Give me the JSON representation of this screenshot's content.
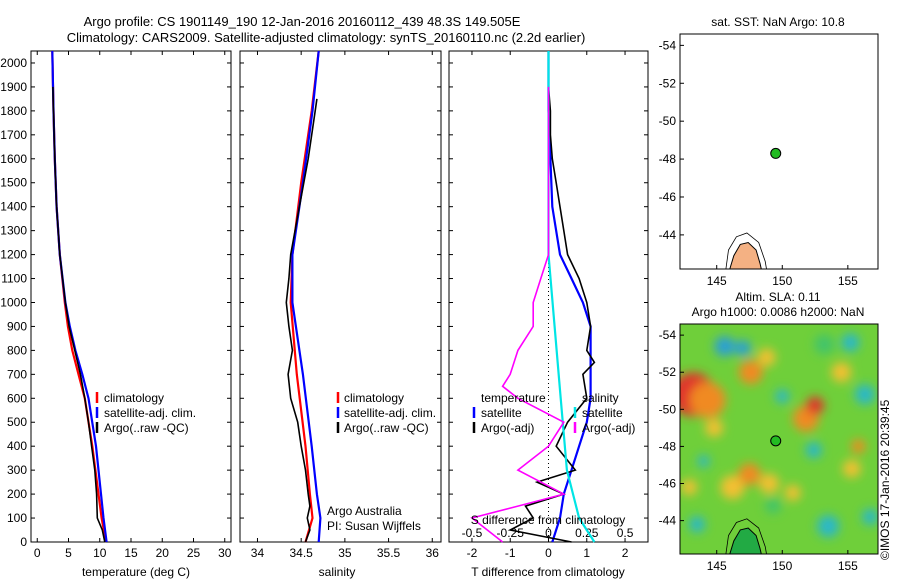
{
  "header": {
    "title_line1": "Argo profile: CS 1901149_190 12-Jan-2016 20160112_439 48.3S 149.505E",
    "title_line2": "Climatology: CARS2009. Satellite-adjusted climatology: synTS_20160110.nc (2.2d earlier)"
  },
  "colors": {
    "climatology": "#ff0000",
    "satellite": "#0000ff",
    "argo": "#000000",
    "salinity_sat": "#00e5e5",
    "salinity_argo": "#ff00ff",
    "land": "#f4b183",
    "float_marker": "#22bb22"
  },
  "chart_data": [
    {
      "type": "line",
      "id": "temperature",
      "xlabel": "temperature (deg C)",
      "xlim": [
        -1,
        31
      ],
      "ylim": [
        2050,
        0
      ],
      "xticks": [
        "0",
        "5",
        "10",
        "15",
        "20",
        "25",
        "30"
      ],
      "yticks": [
        "0",
        "100",
        "200",
        "300",
        "400",
        "500",
        "600",
        "700",
        "800",
        "900",
        "1000",
        "1100",
        "1200",
        "1300",
        "1400",
        "1500",
        "1600",
        "1700",
        "1800",
        "1900",
        "2000"
      ],
      "legend": [
        "climatology",
        "satellite-adj. clim.",
        "Argo(..raw -QC)"
      ],
      "series": [
        {
          "name": "climatology",
          "depth": [
            0,
            100,
            200,
            400,
            600,
            700,
            800,
            900,
            1000,
            1200,
            1400,
            1600,
            1800,
            2050
          ],
          "values": [
            11.0,
            10.3,
            9.8,
            8.8,
            7.6,
            6.6,
            5.6,
            4.9,
            4.4,
            3.6,
            3.1,
            2.8,
            2.6,
            2.4
          ]
        },
        {
          "name": "satellite-adj. clim.",
          "depth": [
            0,
            100,
            200,
            400,
            600,
            700,
            800,
            900,
            1000,
            1200,
            1400,
            1600,
            1800,
            2050
          ],
          "values": [
            11.1,
            10.6,
            10.2,
            9.4,
            8.2,
            7.2,
            6.1,
            5.2,
            4.5,
            3.6,
            3.1,
            2.8,
            2.6,
            2.4
          ]
        },
        {
          "name": "Argo(..raw -QC)",
          "depth": [
            0,
            50,
            100,
            200,
            300,
            400,
            500,
            600,
            700,
            800,
            900,
            1000,
            1200,
            1400,
            1600,
            1800,
            1900
          ],
          "values": [
            10.8,
            10.4,
            9.6,
            9.5,
            9.2,
            8.7,
            8.2,
            7.6,
            6.9,
            6.0,
            5.1,
            4.5,
            3.6,
            3.1,
            2.8,
            2.6,
            2.5
          ]
        }
      ]
    },
    {
      "type": "line",
      "id": "salinity",
      "xlabel": "salinity",
      "xlim": [
        33.8,
        36.1
      ],
      "ylim": [
        2050,
        0
      ],
      "xticks": [
        "34",
        "34.5",
        "35",
        "35.5",
        "36"
      ],
      "legend": [
        "climatology",
        "satellite-adj. clim.",
        "Argo(..raw -QC)"
      ],
      "annotation": [
        "Argo Australia",
        "PI: Susan Wijffels"
      ],
      "series": [
        {
          "name": "climatology",
          "depth": [
            0,
            100,
            200,
            400,
            700,
            1000,
            1200,
            1500,
            1800,
            2050
          ],
          "values": [
            34.55,
            34.63,
            34.6,
            34.55,
            34.45,
            34.38,
            34.4,
            34.5,
            34.62,
            34.7
          ]
        },
        {
          "name": "satellite-adj. clim.",
          "depth": [
            0,
            100,
            200,
            400,
            700,
            1000,
            1200,
            1500,
            1800,
            2050
          ],
          "values": [
            34.7,
            34.72,
            34.68,
            34.62,
            34.52,
            34.4,
            34.4,
            34.52,
            34.63,
            34.7
          ]
        },
        {
          "name": "Argo(..raw -QC)",
          "depth": [
            0,
            50,
            100,
            150,
            200,
            300,
            400,
            500,
            600,
            700,
            800,
            900,
            1000,
            1100,
            1200,
            1400,
            1600,
            1800,
            1850
          ],
          "values": [
            34.55,
            34.6,
            34.57,
            34.6,
            34.58,
            34.55,
            34.5,
            34.46,
            34.38,
            34.35,
            34.4,
            34.36,
            34.33,
            34.36,
            34.38,
            34.48,
            34.58,
            34.66,
            34.68
          ]
        }
      ]
    },
    {
      "type": "line",
      "id": "difference",
      "xlabel": "T difference from climatology",
      "xlabel_top": "S difference from climatology",
      "xlim": [
        -2.6,
        2.6
      ],
      "ylim": [
        2050,
        0
      ],
      "xticks": [
        "-2",
        "-1",
        "0",
        "1",
        "2"
      ],
      "xticks_top": [
        "-0.5",
        "-0.25",
        "0",
        "0.25",
        "0.5"
      ],
      "legend_headers": [
        "temperature",
        "salinity"
      ],
      "legend": [
        "satellite",
        "Argo(-adj)",
        "satellite",
        "Argo(-adj)"
      ],
      "series": [
        {
          "name": "satellite",
          "depth": [
            0,
            100,
            200,
            300,
            400,
            500,
            600,
            700,
            800,
            900,
            1000,
            1100,
            1200,
            1400,
            1600,
            1800,
            2050
          ],
          "values": [
            0.1,
            0.3,
            0.4,
            0.6,
            0.8,
            1.0,
            1.1,
            1.1,
            1.1,
            1.1,
            0.9,
            0.6,
            0.3,
            0.1,
            0.05,
            0.0,
            0.0
          ]
        },
        {
          "name": "Argo(-adj)",
          "depth": [
            0,
            50,
            100,
            150,
            200,
            250,
            300,
            400,
            500,
            600,
            700,
            750,
            800,
            900,
            1000,
            1100,
            1200,
            1300,
            1400,
            1500,
            1600,
            1700,
            1800,
            1900
          ],
          "values": [
            0.6,
            -1.0,
            -0.4,
            -0.6,
            0.4,
            -0.3,
            0.7,
            0.2,
            0.5,
            1.0,
            0.9,
            1.2,
            1.0,
            1.1,
            1.0,
            0.8,
            0.5,
            0.4,
            0.3,
            0.2,
            0.1,
            0.05,
            0.05,
            0.0
          ]
        },
        {
          "name": "satellite",
          "depth": [
            0,
            100,
            300,
            600,
            900,
            1200,
            1500,
            1800,
            2050
          ],
          "values": [
            0.3,
            0.2,
            0.12,
            0.08,
            0.04,
            0.0,
            0.0,
            0.0,
            0.0
          ]
        },
        {
          "name": "Argo(-adj)",
          "depth": [
            0,
            50,
            100,
            150,
            200,
            300,
            400,
            500,
            600,
            650,
            700,
            800,
            900,
            1000,
            1100,
            1200,
            1400,
            1600,
            1800,
            1900
          ],
          "values": [
            -0.3,
            -0.4,
            -0.5,
            -0.2,
            0.1,
            -0.2,
            0.0,
            0.1,
            -0.2,
            -0.3,
            -0.25,
            -0.2,
            -0.1,
            -0.1,
            -0.05,
            0.0,
            0.0,
            0.0,
            0.0,
            0.0
          ]
        }
      ]
    },
    {
      "type": "scatter",
      "id": "sst_map",
      "title": "sat. SST: NaN  Argo: 10.8",
      "xlim": [
        142.2,
        157.3
      ],
      "ylim": [
        -54.6,
        -42.2
      ],
      "xticks": [
        "145",
        "150",
        "155"
      ],
      "yticks": [
        "-44",
        "-46",
        "-48",
        "-50",
        "-52",
        "-54"
      ],
      "float_position": {
        "lon": 149.5,
        "lat": -48.3
      }
    },
    {
      "type": "heatmap",
      "id": "sla_map",
      "title_line1": "Altim. SLA: 0.11",
      "title_line2": "Argo h1000: 0.0086  h2000: NaN",
      "xlim": [
        142.2,
        157.3
      ],
      "ylim": [
        -54.6,
        -42.2
      ],
      "xticks": [
        "145",
        "150",
        "155"
      ],
      "yticks": [
        "-44",
        "-46",
        "-48",
        "-50",
        "-52",
        "-54"
      ],
      "float_position": {
        "lon": 149.5,
        "lat": -48.3
      }
    }
  ],
  "footer": {
    "credit": "©IMOS 17-Jan-2016 20:39:45"
  }
}
